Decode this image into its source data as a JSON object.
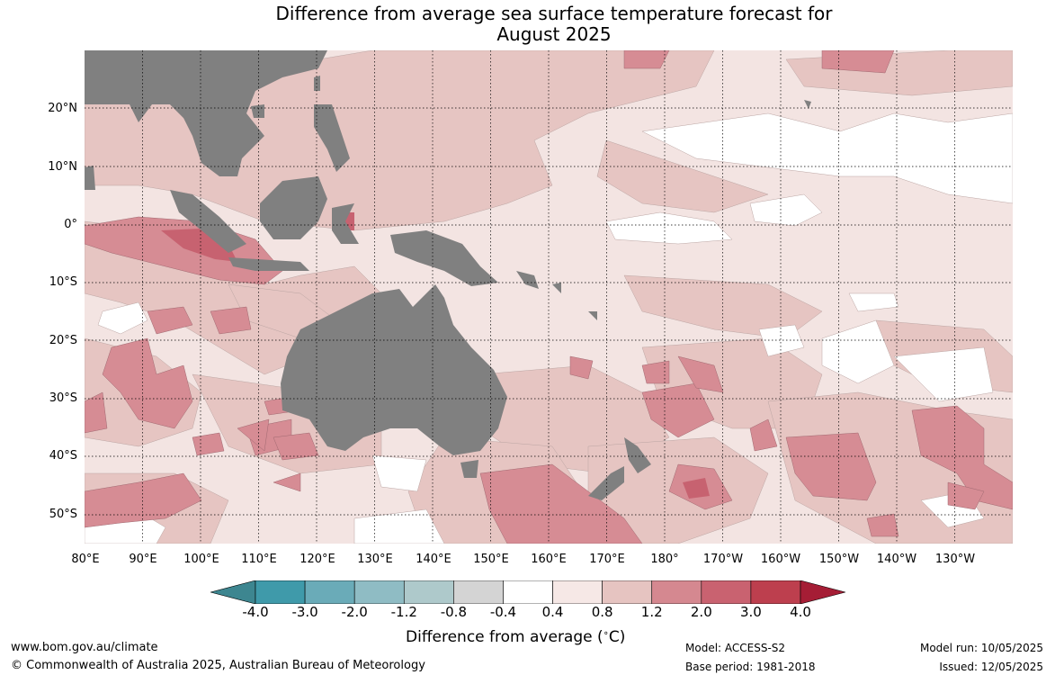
{
  "title_line1": "Difference from average sea surface temperature forecast for",
  "title_line2": "August 2025",
  "lat_labels": [
    "20°N",
    "10°N",
    "0°",
    "10°S",
    "20°S",
    "30°S",
    "40°S",
    "50°S"
  ],
  "lon_labels": [
    "80°E",
    "90°E",
    "100°E",
    "110°E",
    "120°E",
    "130°E",
    "140°E",
    "150°E",
    "160°E",
    "170°E",
    "180°",
    "170°W",
    "160°W",
    "150°W",
    "140°W",
    "130°W"
  ],
  "colorbar": {
    "ticks": [
      "-4.0",
      "-3.0",
      "-2.0",
      "-1.2",
      "-0.8",
      "-0.4",
      "0.4",
      "0.8",
      "1.2",
      "2.0",
      "3.0",
      "4.0"
    ],
    "colors": [
      "#3f9aaa",
      "#6aabb8",
      "#8fbcc4",
      "#aec9cb",
      "#d4d4d4",
      "#ffffff",
      "#f6e8e6",
      "#e6c4c1",
      "#d58890",
      "#c96270",
      "#bd3f4e"
    ],
    "under_color": "#3d8690",
    "over_color": "#a51d35",
    "label": "Difference from average (",
    "label_unit": "∘",
    "label_tail": "C)"
  },
  "land_color": "#808080",
  "footer": {
    "url": "www.bom.gov.au/climate",
    "copyright": "© Commonwealth of Australia 2025, Australian Bureau of Meteorology",
    "model": "Model: ACCESS-S2",
    "base_period": "Base period: 1981-2018",
    "model_run": "Model run: 10/05/2025",
    "issued": "Issued: 12/05/2025"
  }
}
